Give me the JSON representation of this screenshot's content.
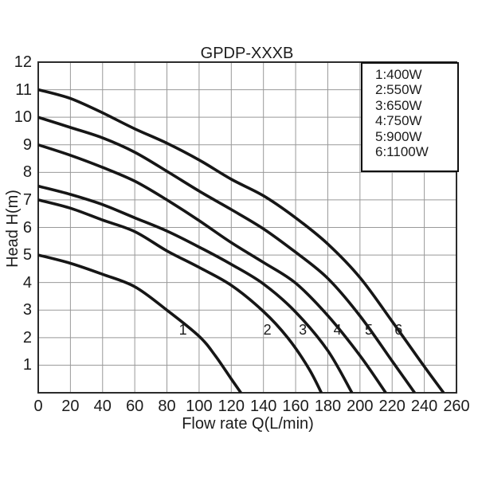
{
  "page": {
    "background": "#ffffff"
  },
  "chart_data": {
    "type": "line",
    "title": "GPDP-XXXB",
    "xlabel": "Flow rate Q(L/min)",
    "ylabel": "Head H(m)",
    "xlim": [
      0,
      260
    ],
    "ylim": [
      0,
      12
    ],
    "x_ticks": [
      0,
      20,
      40,
      60,
      80,
      100,
      120,
      140,
      160,
      180,
      200,
      220,
      240,
      260
    ],
    "y_ticks": [
      1,
      2,
      3,
      4,
      5,
      6,
      7,
      8,
      9,
      10,
      11,
      12
    ],
    "grid": "on",
    "legend": {
      "position": "top-right",
      "items": [
        "1:400W",
        "2:550W",
        "3:650W",
        "4:750W",
        "5:900W",
        "6:1100W"
      ]
    },
    "series": [
      {
        "name": "1",
        "power": "400W",
        "marker": {
          "text": "1",
          "q": 90,
          "h": 2.28
        },
        "points": [
          [
            0,
            5.0
          ],
          [
            20,
            4.7
          ],
          [
            40,
            4.3
          ],
          [
            60,
            3.85
          ],
          [
            80,
            3.0
          ],
          [
            100,
            2.05
          ],
          [
            110,
            1.35
          ],
          [
            120,
            0.5
          ],
          [
            126,
            0
          ]
        ]
      },
      {
        "name": "2",
        "power": "550W",
        "marker": {
          "text": "2",
          "q": 142.5,
          "h": 2.28
        },
        "points": [
          [
            0,
            7.0
          ],
          [
            20,
            6.7
          ],
          [
            40,
            6.27
          ],
          [
            60,
            5.85
          ],
          [
            80,
            5.15
          ],
          [
            100,
            4.55
          ],
          [
            120,
            3.9
          ],
          [
            140,
            2.95
          ],
          [
            155,
            2.0
          ],
          [
            168,
            0.9
          ],
          [
            176,
            0
          ]
        ]
      },
      {
        "name": "3",
        "power": "650W",
        "marker": {
          "text": "3",
          "q": 164.5,
          "h": 2.28
        },
        "points": [
          [
            0,
            7.5
          ],
          [
            20,
            7.2
          ],
          [
            40,
            6.83
          ],
          [
            60,
            6.35
          ],
          [
            80,
            5.87
          ],
          [
            100,
            5.29
          ],
          [
            120,
            4.66
          ],
          [
            140,
            3.95
          ],
          [
            160,
            2.93
          ],
          [
            180,
            1.53
          ],
          [
            195,
            0
          ]
        ]
      },
      {
        "name": "4",
        "power": "750W",
        "marker": {
          "text": "4",
          "q": 186,
          "h": 2.28
        },
        "points": [
          [
            0,
            9.0
          ],
          [
            20,
            8.62
          ],
          [
            40,
            8.18
          ],
          [
            60,
            7.68
          ],
          [
            80,
            7.0
          ],
          [
            100,
            6.25
          ],
          [
            120,
            5.45
          ],
          [
            140,
            4.73
          ],
          [
            160,
            3.98
          ],
          [
            180,
            2.8
          ],
          [
            200,
            1.35
          ],
          [
            216,
            0
          ]
        ]
      },
      {
        "name": "5",
        "power": "900W",
        "marker": {
          "text": "5",
          "q": 205.5,
          "h": 2.28
        },
        "points": [
          [
            0,
            10.0
          ],
          [
            20,
            9.63
          ],
          [
            40,
            9.25
          ],
          [
            60,
            8.73
          ],
          [
            80,
            8.04
          ],
          [
            100,
            7.32
          ],
          [
            120,
            6.65
          ],
          [
            140,
            5.95
          ],
          [
            160,
            5.1
          ],
          [
            180,
            4.15
          ],
          [
            200,
            2.79
          ],
          [
            220,
            1.15
          ],
          [
            234,
            0
          ]
        ]
      },
      {
        "name": "6",
        "power": "1100W",
        "marker": {
          "text": "6",
          "q": 224,
          "h": 2.28
        },
        "points": [
          [
            0,
            11.0
          ],
          [
            20,
            10.68
          ],
          [
            40,
            10.16
          ],
          [
            60,
            9.58
          ],
          [
            80,
            9.06
          ],
          [
            100,
            8.45
          ],
          [
            120,
            7.75
          ],
          [
            140,
            7.15
          ],
          [
            160,
            6.35
          ],
          [
            180,
            5.4
          ],
          [
            200,
            4.18
          ],
          [
            220,
            2.59
          ],
          [
            240,
            0.95
          ],
          [
            252,
            0
          ]
        ]
      }
    ],
    "colors": {
      "curve": "#161616",
      "grid": "#999999",
      "frame": "#2b2b2b",
      "text": "#1c1c1c",
      "legend_border": "#111111",
      "background": "#ffffff"
    }
  }
}
